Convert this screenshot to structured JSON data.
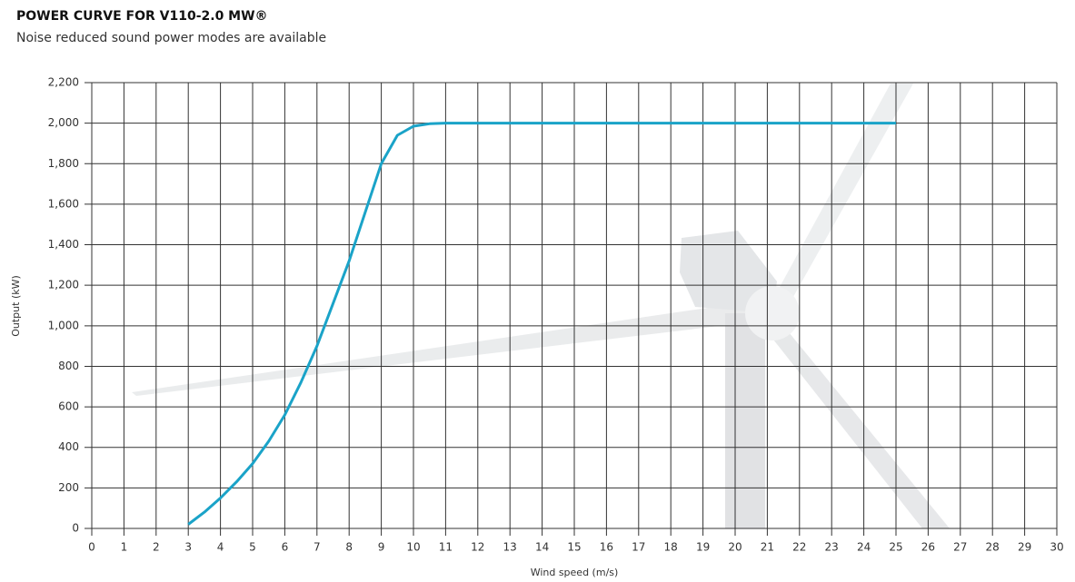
{
  "chart_data": {
    "type": "line",
    "title": "POWER CURVE FOR V110-2.0 MW®",
    "subtitle": "Noise reduced sound power modes are available",
    "x_label": "Wind speed (m/s)",
    "y_label": "Output (kW)",
    "x": [
      3,
      3.5,
      4,
      4.5,
      5,
      5.5,
      6,
      6.5,
      7,
      7.5,
      8,
      8.5,
      9,
      9.5,
      10,
      10.5,
      11,
      12,
      13,
      14,
      15,
      16,
      17,
      18,
      19,
      20,
      21,
      22,
      23,
      24,
      25
    ],
    "values": [
      20,
      80,
      150,
      230,
      320,
      430,
      560,
      720,
      900,
      1110,
      1320,
      1560,
      1800,
      1940,
      1985,
      1997,
      2000,
      2000,
      2000,
      2000,
      2000,
      2000,
      2000,
      2000,
      2000,
      2000,
      2000,
      2000,
      2000,
      2000,
      2000
    ],
    "color": "#1aa3c8",
    "xlim": [
      0,
      30
    ],
    "xticks": [
      0,
      1,
      2,
      3,
      4,
      5,
      6,
      7,
      8,
      9,
      10,
      11,
      12,
      13,
      14,
      15,
      16,
      17,
      18,
      19,
      20,
      21,
      22,
      23,
      24,
      25,
      26,
      27,
      28,
      29,
      30
    ],
    "ylim": [
      0,
      2200
    ],
    "yticks": [
      0,
      200,
      400,
      600,
      800,
      {
        "value": 1000,
        "label": "1,000"
      },
      {
        "value": 1200,
        "label": "1,200"
      },
      {
        "value": 1400,
        "label": "1,400"
      },
      {
        "value": 1600,
        "label": "1,600"
      },
      {
        "value": 1800,
        "label": "1,800"
      },
      {
        "value": 2000,
        "label": "2,000"
      },
      {
        "value": 2200,
        "label": "2,200"
      }
    ],
    "grid": true
  }
}
